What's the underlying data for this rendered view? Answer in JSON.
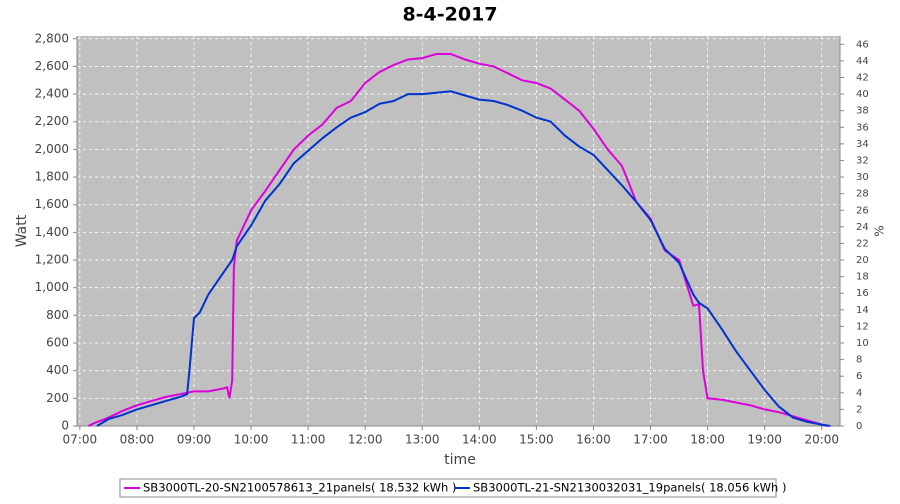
{
  "chart_data": {
    "type": "line",
    "title": "8-4-2017",
    "x_label": "time",
    "y_label": "Watt",
    "y2_label": "%",
    "xlim": [
      6.95,
      20.32
    ],
    "ylim": [
      0,
      2820
    ],
    "y2lim": [
      0,
      47
    ],
    "grid": true,
    "legend": "bottom",
    "xticks": [
      {
        "value": 7,
        "label": "07:00"
      },
      {
        "value": 8,
        "label": "08:00"
      },
      {
        "value": 9,
        "label": "09:00"
      },
      {
        "value": 10,
        "label": "10:00"
      },
      {
        "value": 11,
        "label": "11:00"
      },
      {
        "value": 12,
        "label": "12:00"
      },
      {
        "value": 13,
        "label": "13:00"
      },
      {
        "value": 14,
        "label": "14:00"
      },
      {
        "value": 15,
        "label": "15:00"
      },
      {
        "value": 16,
        "label": "16:00"
      },
      {
        "value": 17,
        "label": "17:00"
      },
      {
        "value": 18,
        "label": "18:00"
      },
      {
        "value": 19,
        "label": "19:00"
      },
      {
        "value": 20,
        "label": "20:00"
      }
    ],
    "yticks": [
      0,
      200,
      400,
      600,
      800,
      {
        "value": 1000,
        "label": "1,000"
      },
      {
        "value": 1200,
        "label": "1,200"
      },
      {
        "value": 1400,
        "label": "1,400"
      },
      {
        "value": 1600,
        "label": "1,600"
      },
      {
        "value": 1800,
        "label": "1,800"
      },
      {
        "value": 2000,
        "label": "2,000"
      },
      {
        "value": 2200,
        "label": "2,200"
      },
      {
        "value": 2400,
        "label": "2,400"
      },
      {
        "value": 2600,
        "label": "2,600"
      },
      {
        "value": 2800,
        "label": "2,800"
      }
    ],
    "y2ticks": [
      0,
      2,
      4,
      6,
      8,
      10,
      12,
      14,
      16,
      18,
      20,
      22,
      24,
      26,
      28,
      30,
      32,
      34,
      36,
      38,
      40,
      42,
      44,
      46
    ],
    "series": [
      {
        "name": "SB3000TL-20-SN2100578613_21panels( 18.532 kWh )",
        "color": "#dd00dd",
        "x": [
          7.15,
          7.25,
          7.5,
          7.75,
          8.0,
          8.25,
          8.5,
          8.75,
          9.0,
          9.25,
          9.5,
          9.58,
          9.62,
          9.67,
          9.7,
          9.75,
          10.0,
          10.25,
          10.5,
          10.75,
          11.0,
          11.25,
          11.5,
          11.75,
          12.0,
          12.25,
          12.5,
          12.75,
          13.0,
          13.25,
          13.5,
          13.75,
          14.0,
          14.25,
          14.5,
          14.75,
          15.0,
          15.25,
          15.5,
          15.75,
          16.0,
          16.25,
          16.5,
          16.75,
          17.0,
          17.25,
          17.5,
          17.75,
          17.85,
          17.92,
          18.0,
          18.25,
          18.5,
          18.75,
          19.0,
          19.25,
          19.5,
          19.75,
          20.0,
          20.1
        ],
        "values": [
          0,
          20,
          60,
          110,
          150,
          180,
          210,
          230,
          250,
          250,
          270,
          280,
          200,
          330,
          1150,
          1340,
          1560,
          1700,
          1850,
          2000,
          2100,
          2180,
          2300,
          2350,
          2480,
          2560,
          2610,
          2650,
          2660,
          2690,
          2690,
          2650,
          2620,
          2600,
          2550,
          2500,
          2480,
          2440,
          2360,
          2280,
          2150,
          2000,
          1880,
          1620,
          1500,
          1270,
          1200,
          870,
          880,
          400,
          200,
          190,
          170,
          150,
          120,
          100,
          70,
          40,
          10,
          0
        ]
      },
      {
        "name": "SB3000TL-21-SN2130032031_19panels( 18.056 kWh )",
        "color": "#0033cc",
        "x": [
          7.3,
          7.5,
          7.75,
          8.0,
          8.25,
          8.5,
          8.75,
          8.88,
          8.92,
          9.0,
          9.1,
          9.25,
          9.5,
          9.67,
          9.75,
          10.0,
          10.25,
          10.5,
          10.75,
          11.0,
          11.25,
          11.5,
          11.75,
          12.0,
          12.25,
          12.5,
          12.75,
          13.0,
          13.25,
          13.5,
          13.75,
          14.0,
          14.25,
          14.5,
          14.75,
          15.0,
          15.25,
          15.5,
          15.75,
          16.0,
          16.25,
          16.5,
          16.75,
          17.0,
          17.25,
          17.5,
          17.75,
          17.85,
          18.0,
          18.25,
          18.5,
          18.75,
          19.0,
          19.25,
          19.5,
          19.75,
          20.0,
          20.15
        ],
        "values": [
          0,
          50,
          80,
          120,
          150,
          180,
          210,
          230,
          400,
          780,
          820,
          950,
          1100,
          1200,
          1300,
          1450,
          1630,
          1750,
          1900,
          1990,
          2080,
          2160,
          2230,
          2270,
          2330,
          2350,
          2400,
          2400,
          2410,
          2420,
          2390,
          2360,
          2350,
          2320,
          2280,
          2230,
          2200,
          2100,
          2020,
          1960,
          1850,
          1740,
          1620,
          1490,
          1280,
          1180,
          950,
          890,
          850,
          700,
          540,
          400,
          260,
          140,
          60,
          30,
          10,
          0
        ]
      }
    ]
  }
}
